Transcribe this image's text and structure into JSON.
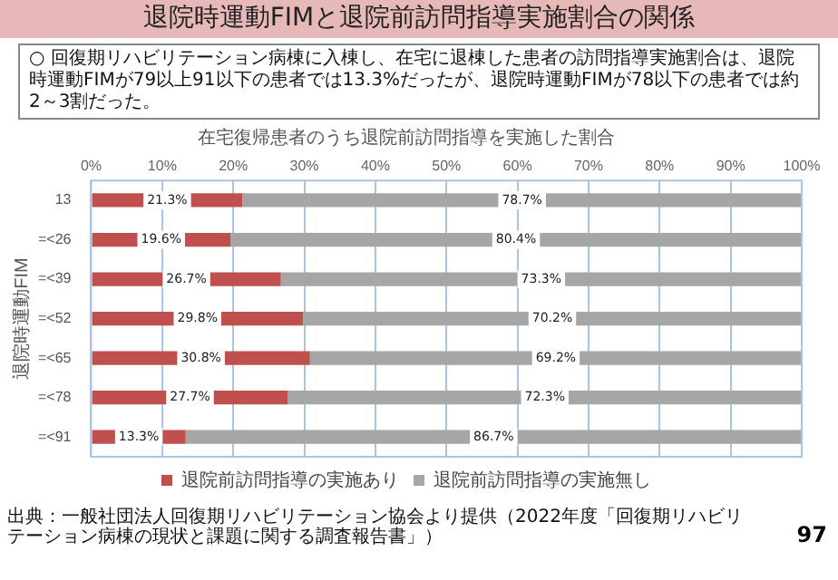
{
  "chart_data": {
    "type": "bar",
    "orientation": "horizontal",
    "stacked": true,
    "title": "退院時運動FIMと退院前訪問指導実施割合の関係",
    "subtitle": "在宅復帰患者のうち退院前訪問指導を実施した割合",
    "ylabel": "退院時運動FIM",
    "categories": [
      "13",
      "=<26",
      "=<39",
      "=<52",
      "=<65",
      "=<78",
      "=<91"
    ],
    "series": [
      {
        "name": "退院前訪問指導の実施あり",
        "color": "#c0504d",
        "values": [
          21.3,
          19.6,
          26.7,
          29.8,
          30.8,
          27.7,
          13.3
        ],
        "value_labels": [
          "21.3%",
          "19.6%",
          "26.7%",
          "29.8%",
          "30.8%",
          "27.7%",
          "13.3%"
        ]
      },
      {
        "name": "退院前訪問指導の実施無し",
        "color": "#a6a6a6",
        "values": [
          78.7,
          80.4,
          73.3,
          70.2,
          69.2,
          72.3,
          86.7
        ],
        "value_labels": [
          "78.7%",
          "80.4%",
          "73.3%",
          "70.2%",
          "69.2%",
          "72.3%",
          "86.7%"
        ]
      }
    ],
    "xlim": [
      0,
      100
    ],
    "xticks": [
      {
        "value": 0,
        "label": "0%"
      },
      {
        "value": 10,
        "label": "10%"
      },
      {
        "value": 20,
        "label": "20%"
      },
      {
        "value": 30,
        "label": "30%"
      },
      {
        "value": 40,
        "label": "40%"
      },
      {
        "value": 50,
        "label": "50%"
      },
      {
        "value": 60,
        "label": "60%"
      },
      {
        "value": 70,
        "label": "70%"
      },
      {
        "value": 80,
        "label": "80%"
      },
      {
        "value": 90,
        "label": "90%"
      },
      {
        "value": 100,
        "label": "100%"
      }
    ],
    "grid": "x",
    "legend": "bottom",
    "annotations": [
      "○ 回復期リハビリテーション病棟に入棟し、在宅に退棟した患者の訪問指導実施割合は、退院時運動FIMが79以上91以下の患者では13.3%だったが、退院時運動FIMが78以下の患者では約2～3割だった。",
      "出典：一般社団法人回復期リハビリテーション協会より提供（2022年度「回復期リハビリテーション病棟の現状と課題に関する調査報告書」）",
      "97"
    ]
  }
}
